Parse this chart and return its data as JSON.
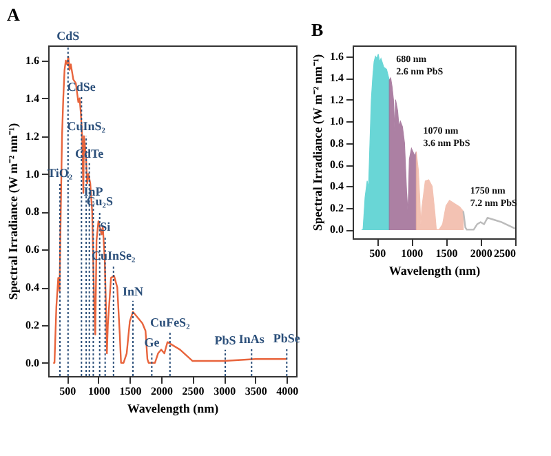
{
  "chart_data": [
    {
      "type": "line",
      "title": "A",
      "xlabel": "Wavelength (nm)",
      "ylabel": "Spectral Irradiance (W m⁻² nm⁻¹)",
      "x": [
        280,
        300,
        330,
        360,
        380,
        400,
        420,
        440,
        460,
        480,
        500,
        520,
        540,
        560,
        600,
        640,
        680,
        700,
        720,
        740,
        760,
        770,
        800,
        820,
        840,
        870,
        900,
        930,
        950,
        970,
        1000,
        1050,
        1070,
        1100,
        1120,
        1135,
        1150,
        1170,
        1200,
        1250,
        1300,
        1340,
        1360,
        1400,
        1450,
        1500,
        1550,
        1600,
        1700,
        1750,
        1780,
        1800,
        1900,
        1950,
        2000,
        2050,
        2100,
        2200,
        2300,
        2400,
        2500,
        3000,
        3500,
        4000
      ],
      "series": [
        {
          "color": "#e8643c",
          "values": [
            0,
            0.0,
            0.3,
            0.45,
            0.38,
            0.8,
            1.2,
            1.4,
            1.55,
            1.6,
            1.58,
            1.62,
            1.55,
            1.58,
            1.5,
            1.48,
            1.38,
            1.4,
            1.32,
            1.2,
            0.9,
            1.2,
            1.1,
            0.95,
            1.0,
            0.95,
            0.8,
            0.35,
            0.15,
            0.65,
            0.75,
            0.68,
            0.72,
            0.55,
            0.3,
            0.05,
            0.2,
            0.3,
            0.45,
            0.46,
            0.4,
            0.15,
            0.0,
            0.0,
            0.05,
            0.22,
            0.27,
            0.25,
            0.21,
            0.17,
            0.02,
            0.0,
            0.0,
            0.05,
            0.07,
            0.05,
            0.11,
            0.09,
            0.07,
            0.04,
            0.01,
            0.01,
            0.02,
            0.02
          ]
        }
      ],
      "xlim": [
        200,
        4150
      ],
      "ylim": [
        -0.07,
        1.68
      ],
      "xticks": [
        500,
        1000,
        1500,
        2000,
        2500,
        3000,
        3500,
        4000
      ],
      "yticks": [
        {
          "value": 0,
          "label": "0.0"
        },
        {
          "value": 0.2,
          "label": "0.2"
        },
        {
          "value": 0.4,
          "label": "0.4"
        },
        {
          "value": 0.6,
          "label": "0.6"
        },
        {
          "value": 0.8,
          "label": "0.8"
        },
        {
          "value": 1,
          "label": "1.0"
        },
        {
          "value": 1.2,
          "label": "1.2"
        },
        {
          "value": 1.4,
          "label": "1.4"
        },
        {
          "value": 1.6,
          "label": "1.6"
        }
      ],
      "ref_lines": [
        {
          "axis": "x",
          "value": 387,
          "label": "TiO₂",
          "color": "#2b4f7a",
          "line_style": "dotted"
        },
        {
          "axis": "x",
          "value": 516,
          "label": "CdS",
          "color": "#2b4f7a",
          "line_style": "dotted"
        },
        {
          "axis": "x",
          "value": 730,
          "label": "CdSe",
          "color": "#2b4f7a",
          "line_style": "dotted"
        },
        {
          "axis": "x",
          "value": 805,
          "label": "CuInS₂",
          "color": "#2b4f7a",
          "line_style": "dotted"
        },
        {
          "axis": "x",
          "value": 855,
          "label": "CdTe",
          "color": "#2b4f7a",
          "line_style": "dotted"
        },
        {
          "axis": "x",
          "value": 918,
          "label": "InP",
          "color": "#2b4f7a",
          "line_style": "dotted"
        },
        {
          "axis": "x",
          "value": 1020,
          "label": "Cu₂S",
          "color": "#2b4f7a",
          "line_style": "dotted"
        },
        {
          "axis": "x",
          "value": 1107,
          "label": "Si",
          "color": "#2b4f7a",
          "line_style": "dotted"
        },
        {
          "axis": "x",
          "value": 1240,
          "label": "CuInSe₂",
          "color": "#2b4f7a",
          "line_style": "dotted"
        },
        {
          "axis": "x",
          "value": 1550,
          "label": "InN",
          "color": "#2b4f7a",
          "line_style": "dotted"
        },
        {
          "axis": "x",
          "value": 1850,
          "label": "Ge",
          "color": "#2b4f7a",
          "line_style": "dotted"
        },
        {
          "axis": "x",
          "value": 2140,
          "label": "CuFeS₂",
          "color": "#2b4f7a",
          "line_style": "dotted"
        },
        {
          "axis": "x",
          "value": 3020,
          "label": "PbS",
          "color": "#2b4f7a",
          "line_style": "dotted"
        },
        {
          "axis": "x",
          "value": 3440,
          "label": "InAs",
          "color": "#2b4f7a",
          "line_style": "dotted"
        },
        {
          "axis": "x",
          "value": 4000,
          "label": "PbSe",
          "color": "#2b4f7a",
          "line_style": "dotted"
        }
      ],
      "grid": false
    },
    {
      "type": "area",
      "title": "B",
      "xlabel": "Wavelength (nm)",
      "ylabel": "Spectral Irradiance (W m⁻² nm⁻¹)",
      "series": [
        {
          "color": "#4fcfcf",
          "x": [
            280,
            300,
            330,
            360,
            380,
            400,
            420,
            440,
            460,
            480,
            500,
            520,
            540,
            560,
            600,
            640,
            680
          ],
          "values": [
            0,
            0.0,
            0.3,
            0.45,
            0.38,
            0.8,
            1.2,
            1.4,
            1.55,
            1.6,
            1.58,
            1.62,
            1.55,
            1.58,
            1.5,
            1.48,
            1.38
          ]
        },
        {
          "color": "#9e6b94",
          "x": [
            680,
            700,
            720,
            740,
            760,
            770,
            800,
            820,
            840,
            870,
            900,
            930,
            950,
            970,
            1000,
            1050,
            1070
          ],
          "values": [
            1.38,
            1.4,
            1.32,
            1.2,
            0.9,
            1.2,
            1.1,
            0.95,
            1.0,
            0.95,
            0.8,
            0.35,
            0.15,
            0.65,
            0.75,
            0.68,
            0.72
          ]
        },
        {
          "color": "#f2b8a6",
          "x": [
            1070,
            1100,
            1120,
            1135,
            1150,
            1170,
            1200,
            1250,
            1300,
            1340,
            1360,
            1400,
            1450,
            1500,
            1550,
            1600,
            1700,
            1750
          ],
          "values": [
            0.72,
            0.55,
            0.3,
            0.05,
            0.2,
            0.3,
            0.45,
            0.46,
            0.4,
            0.15,
            0.0,
            0.0,
            0.05,
            0.22,
            0.27,
            0.25,
            0.21,
            0.17
          ]
        },
        {
          "type": "line",
          "color": "#bbbbbb",
          "x": [
            1750,
            1780,
            1800,
            1900,
            1950,
            2000,
            2050,
            2100,
            2200,
            2300,
            2400,
            2500
          ],
          "values": [
            0.17,
            0.02,
            0.0,
            0.0,
            0.05,
            0.07,
            0.05,
            0.11,
            0.09,
            0.07,
            0.04,
            0.01
          ]
        }
      ],
      "xlim": [
        150,
        2500
      ],
      "ylim": [
        -0.08,
        1.7
      ],
      "xticks": [
        500,
        1000,
        1500,
        2000,
        2500
      ],
      "yticks": [
        {
          "value": 0,
          "label": "0.0"
        },
        {
          "value": 0.2,
          "label": "0.2"
        },
        {
          "value": 0.4,
          "label": "0.4"
        },
        {
          "value": 0.6,
          "label": "0.6"
        },
        {
          "value": 0.8,
          "label": "0.8"
        },
        {
          "value": 1,
          "label": "1.0"
        },
        {
          "value": 1.2,
          "label": "1.2"
        },
        {
          "value": 1.4,
          "label": "1.4"
        },
        {
          "value": 1.6,
          "label": "1.6"
        }
      ],
      "annotations": [
        {
          "text": "680 nm\n2.6 nm PbS",
          "x": 680,
          "y": 1.38
        },
        {
          "text": "1070 nm\n3.6 nm PbS",
          "x": 1070,
          "y": 0.72
        },
        {
          "text": "1750 nm\n7.2 nm PbS",
          "x": 1750,
          "y": 0.17
        }
      ],
      "grid": false
    }
  ]
}
